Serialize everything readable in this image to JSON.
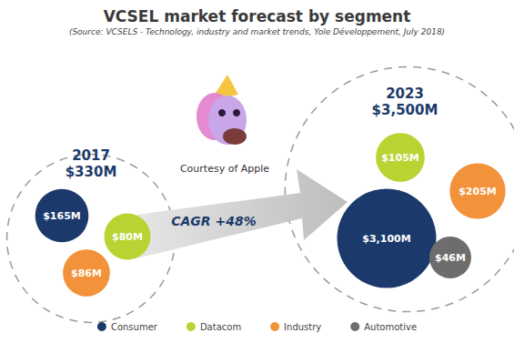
{
  "chart_data": {
    "type": "bubble",
    "title": "VCSEL market forecast by segment",
    "subtitle": "(Source: VCSELS - Technology, industry and market trends, Yole Développement, July 2018)",
    "categories": [
      "2017",
      "2023"
    ],
    "totals": [
      330,
      3500
    ],
    "total_labels": [
      "$330M",
      "$3,500M"
    ],
    "series": [
      {
        "name": "Consumer",
        "color": "#1b3a6b",
        "values": [
          165,
          3100
        ],
        "value_labels": [
          "$165M",
          "$3,100M"
        ]
      },
      {
        "name": "Datacom",
        "color": "#b8d432",
        "values": [
          80,
          105
        ],
        "value_labels": [
          "$80M",
          "$105M"
        ]
      },
      {
        "name": "Industry",
        "color": "#f2923a",
        "values": [
          86,
          205
        ],
        "value_labels": [
          "$86M",
          "$205M"
        ]
      },
      {
        "name": "Automotive",
        "color": "#6d6d6d",
        "values": [
          null,
          46
        ],
        "value_labels": [
          null,
          "$46M"
        ]
      }
    ],
    "annotations": [
      "CAGR +48%",
      "Courtesy of Apple"
    ],
    "data_labels": true,
    "legend": "bottom"
  }
}
